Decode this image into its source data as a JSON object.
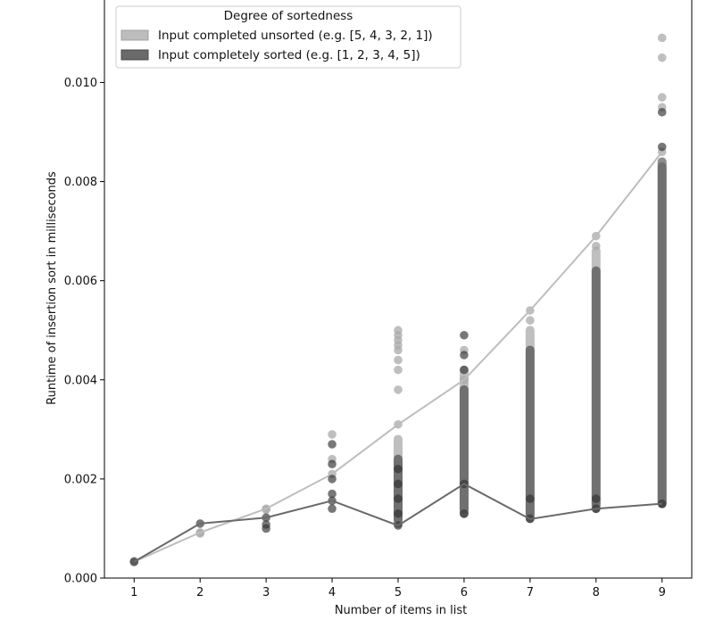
{
  "chart_data": {
    "type": "scatter",
    "xlabel": "Number of items in list",
    "ylabel": "Runtime of insertion sort in milliseconds",
    "xlim": [
      0.55,
      9.45
    ],
    "ylim": [
      0.0,
      0.0117
    ],
    "x_ticks": [
      1,
      2,
      3,
      4,
      5,
      6,
      7,
      8,
      9
    ],
    "y_ticks": [
      0.0,
      0.002,
      0.004,
      0.006,
      0.008,
      0.01
    ],
    "y_tick_labels": [
      "0.000",
      "0.002",
      "0.004",
      "0.006",
      "0.008",
      "0.010"
    ],
    "legend": {
      "title": "Degree of sortedness",
      "placement": "upper-left"
    },
    "series": [
      {
        "name": "Input completed unsorted (e.g. [5, 4, 3, 2, 1])",
        "color": "#bdbdbd",
        "scatter_color": "#a9a9a9",
        "mean_x": [
          1,
          2,
          3,
          4,
          5,
          6,
          7,
          8,
          9
        ],
        "mean_y": [
          0.00033,
          0.00092,
          0.0014,
          0.0021,
          0.0031,
          0.004,
          0.0054,
          0.0069,
          0.0086
        ],
        "points": [
          {
            "x": 1,
            "y": [
              0.00032,
              0.00034
            ]
          },
          {
            "x": 2,
            "y": [
              0.0009,
              0.00092
            ]
          },
          {
            "x": 3,
            "y": [
              0.0014,
              0.00138
            ]
          },
          {
            "x": 4,
            "y": [
              0.0021,
              0.0024,
              0.0029
            ]
          },
          {
            "x": 5,
            "y": [
              0.0031,
              0.0038,
              0.0042,
              0.0044,
              0.0046,
              0.0048,
              0.005,
              0.0049,
              0.0047
            ]
          },
          {
            "x": 6,
            "y": [
              0.004,
              0.0046
            ]
          },
          {
            "x": 7,
            "y": [
              0.0054,
              0.0052
            ]
          },
          {
            "x": 8,
            "y": [
              0.0069,
              0.0067
            ]
          },
          {
            "x": 9,
            "y": [
              0.0086,
              0.0097,
              0.0105,
              0.0109,
              0.0095
            ]
          }
        ],
        "ranges": [
          {
            "x": 5,
            "y": [
              0.0012,
              0.0028
            ]
          },
          {
            "x": 6,
            "y": [
              0.0014,
              0.0042
            ]
          },
          {
            "x": 7,
            "y": [
              0.0013,
              0.005
            ]
          },
          {
            "x": 8,
            "y": [
              0.0015,
              0.0066
            ]
          },
          {
            "x": 9,
            "y": [
              0.0015,
              0.0083
            ]
          }
        ]
      },
      {
        "name": "Input completely sorted (e.g. [1, 2, 3, 4, 5])",
        "color": "#6a6a6a",
        "scatter_color": "#303030",
        "mean_x": [
          1,
          2,
          3,
          4,
          5,
          6,
          7,
          8,
          9
        ],
        "mean_y": [
          0.00033,
          0.0011,
          0.00122,
          0.00156,
          0.00106,
          0.0019,
          0.00119,
          0.0014,
          0.0015
        ],
        "points": [
          {
            "x": 1,
            "y": [
              0.00033
            ]
          },
          {
            "x": 2,
            "y": [
              0.0011
            ]
          },
          {
            "x": 3,
            "y": [
              0.00122,
              0.00108,
              0.001
            ]
          },
          {
            "x": 4,
            "y": [
              0.00156,
              0.0014,
              0.0017,
              0.002,
              0.0023,
              0.0027
            ]
          },
          {
            "x": 5,
            "y": [
              0.00106,
              0.0013,
              0.0016,
              0.0019,
              0.0022
            ]
          },
          {
            "x": 6,
            "y": [
              0.0013,
              0.0019,
              0.0042,
              0.0045,
              0.0049
            ]
          },
          {
            "x": 7,
            "y": [
              0.0012,
              0.0016
            ]
          },
          {
            "x": 8,
            "y": [
              0.0014,
              0.0016
            ]
          },
          {
            "x": 9,
            "y": [
              0.0015,
              0.0087,
              0.0094
            ]
          }
        ],
        "ranges": [
          {
            "x": 5,
            "y": [
              0.0011,
              0.0024
            ]
          },
          {
            "x": 6,
            "y": [
              0.0013,
              0.0038
            ]
          },
          {
            "x": 7,
            "y": [
              0.0012,
              0.0046
            ]
          },
          {
            "x": 8,
            "y": [
              0.0014,
              0.0062
            ]
          },
          {
            "x": 9,
            "y": [
              0.0015,
              0.0084
            ]
          }
        ]
      }
    ]
  }
}
